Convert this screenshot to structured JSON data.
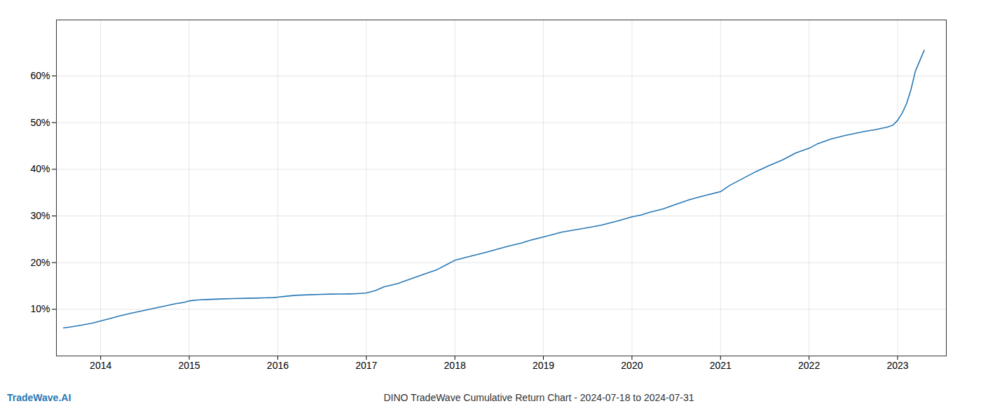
{
  "chart_data": {
    "type": "line",
    "title": "DINO TradeWave Cumulative Return Chart - 2024-07-18 to 2024-07-31",
    "annotations": [
      "TradeWave.AI"
    ],
    "color": "#2878b5",
    "grid": true,
    "x": [
      2013.58,
      2013.65,
      2013.75,
      2013.9,
      2014.0,
      2014.1,
      2014.2,
      2014.35,
      2014.5,
      2014.6,
      2014.75,
      2014.85,
      2014.95,
      2015.0,
      2015.05,
      2015.1,
      2015.2,
      2015.35,
      2015.5,
      2015.65,
      2015.75,
      2015.85,
      2015.95,
      2016.0,
      2016.1,
      2016.2,
      2016.35,
      2016.5,
      2016.6,
      2016.7,
      2016.8,
      2016.9,
      2017.0,
      2017.1,
      2017.2,
      2017.35,
      2017.5,
      2017.65,
      2017.8,
      2017.9,
      2018.0,
      2018.1,
      2018.2,
      2018.35,
      2018.5,
      2018.6,
      2018.75,
      2018.85,
      2019.0,
      2019.1,
      2019.2,
      2019.35,
      2019.5,
      2019.65,
      2019.75,
      2019.85,
      2020.0,
      2020.1,
      2020.2,
      2020.35,
      2020.5,
      2020.65,
      2020.75,
      2020.85,
      2021.0,
      2021.1,
      2021.25,
      2021.4,
      2021.55,
      2021.7,
      2021.85,
      2022.0,
      2022.1,
      2022.25,
      2022.4,
      2022.55,
      2022.65,
      2022.75,
      2022.82,
      2022.88,
      2022.95,
      2023.0,
      2023.05,
      2023.1,
      2023.15,
      2023.2,
      2023.3
    ],
    "values": [
      6.0,
      6.2,
      6.5,
      7.0,
      7.5,
      8.0,
      8.5,
      9.2,
      9.8,
      10.2,
      10.8,
      11.2,
      11.5,
      11.8,
      11.9,
      12.0,
      12.1,
      12.2,
      12.3,
      12.35,
      12.4,
      12.45,
      12.5,
      12.6,
      12.8,
      13.0,
      13.1,
      13.2,
      13.25,
      13.28,
      13.3,
      13.35,
      13.5,
      14.0,
      14.8,
      15.5,
      16.5,
      17.5,
      18.5,
      19.5,
      20.5,
      21.0,
      21.5,
      22.2,
      23.0,
      23.5,
      24.2,
      24.8,
      25.5,
      26.0,
      26.5,
      27.0,
      27.5,
      28.0,
      28.5,
      29.0,
      29.8,
      30.2,
      30.8,
      31.5,
      32.5,
      33.5,
      34.0,
      34.5,
      35.2,
      36.5,
      38.0,
      39.5,
      40.8,
      42.0,
      43.5,
      44.5,
      45.5,
      46.5,
      47.2,
      47.8,
      48.2,
      48.5,
      48.8,
      49.0,
      49.5,
      50.5,
      52.0,
      54.0,
      57.0,
      61.0,
      65.5
    ],
    "xlim": [
      2013.5,
      2023.55
    ],
    "xticks": [
      2014,
      2015,
      2016,
      2017,
      2018,
      2019,
      2020,
      2021,
      2022,
      2023
    ],
    "ylim": [
      0,
      72
    ],
    "yticks": [
      {
        "value": 10,
        "label": "10%"
      },
      {
        "value": 20,
        "label": "20%"
      },
      {
        "value": 30,
        "label": "30%"
      },
      {
        "value": 40,
        "label": "40%"
      },
      {
        "value": 50,
        "label": "50%"
      },
      {
        "value": 60,
        "label": "60%"
      }
    ]
  }
}
